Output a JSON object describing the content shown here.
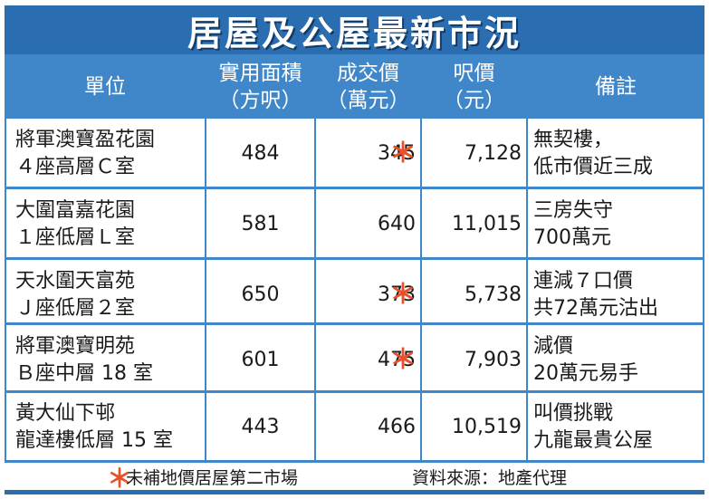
{
  "title": "居屋及公屋最新市況",
  "headers": {
    "unit": "單位",
    "area": [
      "實用面積",
      "（方呎）"
    ],
    "price": [
      "成交價",
      "（萬元）"
    ],
    "psf": [
      "呎價",
      "（元）"
    ],
    "note": "備註"
  },
  "rows": [
    {
      "name": [
        "將軍澳寶盈花園",
        "４座高層Ｃ室"
      ],
      "area": "484",
      "price": "345",
      "star": "＊",
      "psf": "7,128",
      "note": [
        "無契樓，",
        "低市價近三成"
      ]
    },
    {
      "name": [
        "大圍富嘉花園",
        "１座低層Ｌ室"
      ],
      "area": "581",
      "price": "640",
      "star": "",
      "psf": "11,015",
      "note": [
        "三房失守",
        "700萬元"
      ]
    },
    {
      "name": [
        "天水圍天富苑",
        "Ｊ座低層２室"
      ],
      "area": "650",
      "price": "373",
      "star": "＊",
      "psf": "5,738",
      "note": [
        "連減７口價",
        "共72萬元沽出"
      ]
    },
    {
      "name": [
        "將軍澳寶明苑",
        "Ｂ座中層 18 室"
      ],
      "area": "601",
      "price": "475",
      "star": "＊",
      "psf": "7,903",
      "note": [
        "減價",
        "20萬元易手"
      ]
    },
    {
      "name": [
        "黃大仙下邨",
        "龍達樓低層 15 室"
      ],
      "area": "443",
      "price": "466",
      "star": "",
      "psf": "10,519",
      "note": [
        "叫價挑戰",
        "九龍最貴公屋"
      ]
    }
  ],
  "footer": {
    "star": "＊",
    "note": "未補地價居屋第二市場",
    "source": "資料來源：地產代理"
  },
  "colors": {
    "title_bg": "#2a6db0",
    "header_bg": "#3f87c9",
    "star": "#e8502a"
  }
}
